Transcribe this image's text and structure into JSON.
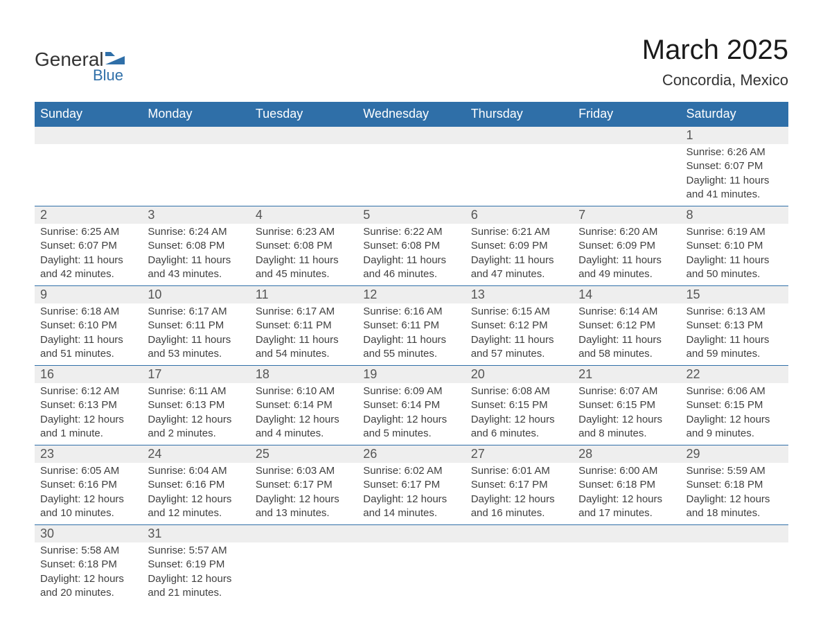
{
  "logo": {
    "text_general": "General",
    "text_blue": "Blue",
    "shape_color": "#2f6fa8"
  },
  "header": {
    "month_title": "March 2025",
    "location": "Concordia, Mexico"
  },
  "calendar": {
    "day_headers": [
      "Sunday",
      "Monday",
      "Tuesday",
      "Wednesday",
      "Thursday",
      "Friday",
      "Saturday"
    ],
    "header_bg": "#2f6fa8",
    "header_fg": "#ffffff",
    "daynum_bg": "#eeeeee",
    "border_color": "#2f6fa8",
    "weeks": [
      [
        null,
        null,
        null,
        null,
        null,
        null,
        {
          "n": "1",
          "sunrise": "Sunrise: 6:26 AM",
          "sunset": "Sunset: 6:07 PM",
          "dl1": "Daylight: 11 hours",
          "dl2": "and 41 minutes."
        }
      ],
      [
        {
          "n": "2",
          "sunrise": "Sunrise: 6:25 AM",
          "sunset": "Sunset: 6:07 PM",
          "dl1": "Daylight: 11 hours",
          "dl2": "and 42 minutes."
        },
        {
          "n": "3",
          "sunrise": "Sunrise: 6:24 AM",
          "sunset": "Sunset: 6:08 PM",
          "dl1": "Daylight: 11 hours",
          "dl2": "and 43 minutes."
        },
        {
          "n": "4",
          "sunrise": "Sunrise: 6:23 AM",
          "sunset": "Sunset: 6:08 PM",
          "dl1": "Daylight: 11 hours",
          "dl2": "and 45 minutes."
        },
        {
          "n": "5",
          "sunrise": "Sunrise: 6:22 AM",
          "sunset": "Sunset: 6:08 PM",
          "dl1": "Daylight: 11 hours",
          "dl2": "and 46 minutes."
        },
        {
          "n": "6",
          "sunrise": "Sunrise: 6:21 AM",
          "sunset": "Sunset: 6:09 PM",
          "dl1": "Daylight: 11 hours",
          "dl2": "and 47 minutes."
        },
        {
          "n": "7",
          "sunrise": "Sunrise: 6:20 AM",
          "sunset": "Sunset: 6:09 PM",
          "dl1": "Daylight: 11 hours",
          "dl2": "and 49 minutes."
        },
        {
          "n": "8",
          "sunrise": "Sunrise: 6:19 AM",
          "sunset": "Sunset: 6:10 PM",
          "dl1": "Daylight: 11 hours",
          "dl2": "and 50 minutes."
        }
      ],
      [
        {
          "n": "9",
          "sunrise": "Sunrise: 6:18 AM",
          "sunset": "Sunset: 6:10 PM",
          "dl1": "Daylight: 11 hours",
          "dl2": "and 51 minutes."
        },
        {
          "n": "10",
          "sunrise": "Sunrise: 6:17 AM",
          "sunset": "Sunset: 6:11 PM",
          "dl1": "Daylight: 11 hours",
          "dl2": "and 53 minutes."
        },
        {
          "n": "11",
          "sunrise": "Sunrise: 6:17 AM",
          "sunset": "Sunset: 6:11 PM",
          "dl1": "Daylight: 11 hours",
          "dl2": "and 54 minutes."
        },
        {
          "n": "12",
          "sunrise": "Sunrise: 6:16 AM",
          "sunset": "Sunset: 6:11 PM",
          "dl1": "Daylight: 11 hours",
          "dl2": "and 55 minutes."
        },
        {
          "n": "13",
          "sunrise": "Sunrise: 6:15 AM",
          "sunset": "Sunset: 6:12 PM",
          "dl1": "Daylight: 11 hours",
          "dl2": "and 57 minutes."
        },
        {
          "n": "14",
          "sunrise": "Sunrise: 6:14 AM",
          "sunset": "Sunset: 6:12 PM",
          "dl1": "Daylight: 11 hours",
          "dl2": "and 58 minutes."
        },
        {
          "n": "15",
          "sunrise": "Sunrise: 6:13 AM",
          "sunset": "Sunset: 6:13 PM",
          "dl1": "Daylight: 11 hours",
          "dl2": "and 59 minutes."
        }
      ],
      [
        {
          "n": "16",
          "sunrise": "Sunrise: 6:12 AM",
          "sunset": "Sunset: 6:13 PM",
          "dl1": "Daylight: 12 hours",
          "dl2": "and 1 minute."
        },
        {
          "n": "17",
          "sunrise": "Sunrise: 6:11 AM",
          "sunset": "Sunset: 6:13 PM",
          "dl1": "Daylight: 12 hours",
          "dl2": "and 2 minutes."
        },
        {
          "n": "18",
          "sunrise": "Sunrise: 6:10 AM",
          "sunset": "Sunset: 6:14 PM",
          "dl1": "Daylight: 12 hours",
          "dl2": "and 4 minutes."
        },
        {
          "n": "19",
          "sunrise": "Sunrise: 6:09 AM",
          "sunset": "Sunset: 6:14 PM",
          "dl1": "Daylight: 12 hours",
          "dl2": "and 5 minutes."
        },
        {
          "n": "20",
          "sunrise": "Sunrise: 6:08 AM",
          "sunset": "Sunset: 6:15 PM",
          "dl1": "Daylight: 12 hours",
          "dl2": "and 6 minutes."
        },
        {
          "n": "21",
          "sunrise": "Sunrise: 6:07 AM",
          "sunset": "Sunset: 6:15 PM",
          "dl1": "Daylight: 12 hours",
          "dl2": "and 8 minutes."
        },
        {
          "n": "22",
          "sunrise": "Sunrise: 6:06 AM",
          "sunset": "Sunset: 6:15 PM",
          "dl1": "Daylight: 12 hours",
          "dl2": "and 9 minutes."
        }
      ],
      [
        {
          "n": "23",
          "sunrise": "Sunrise: 6:05 AM",
          "sunset": "Sunset: 6:16 PM",
          "dl1": "Daylight: 12 hours",
          "dl2": "and 10 minutes."
        },
        {
          "n": "24",
          "sunrise": "Sunrise: 6:04 AM",
          "sunset": "Sunset: 6:16 PM",
          "dl1": "Daylight: 12 hours",
          "dl2": "and 12 minutes."
        },
        {
          "n": "25",
          "sunrise": "Sunrise: 6:03 AM",
          "sunset": "Sunset: 6:17 PM",
          "dl1": "Daylight: 12 hours",
          "dl2": "and 13 minutes."
        },
        {
          "n": "26",
          "sunrise": "Sunrise: 6:02 AM",
          "sunset": "Sunset: 6:17 PM",
          "dl1": "Daylight: 12 hours",
          "dl2": "and 14 minutes."
        },
        {
          "n": "27",
          "sunrise": "Sunrise: 6:01 AM",
          "sunset": "Sunset: 6:17 PM",
          "dl1": "Daylight: 12 hours",
          "dl2": "and 16 minutes."
        },
        {
          "n": "28",
          "sunrise": "Sunrise: 6:00 AM",
          "sunset": "Sunset: 6:18 PM",
          "dl1": "Daylight: 12 hours",
          "dl2": "and 17 minutes."
        },
        {
          "n": "29",
          "sunrise": "Sunrise: 5:59 AM",
          "sunset": "Sunset: 6:18 PM",
          "dl1": "Daylight: 12 hours",
          "dl2": "and 18 minutes."
        }
      ],
      [
        {
          "n": "30",
          "sunrise": "Sunrise: 5:58 AM",
          "sunset": "Sunset: 6:18 PM",
          "dl1": "Daylight: 12 hours",
          "dl2": "and 20 minutes."
        },
        {
          "n": "31",
          "sunrise": "Sunrise: 5:57 AM",
          "sunset": "Sunset: 6:19 PM",
          "dl1": "Daylight: 12 hours",
          "dl2": "and 21 minutes."
        },
        null,
        null,
        null,
        null,
        null
      ]
    ]
  }
}
